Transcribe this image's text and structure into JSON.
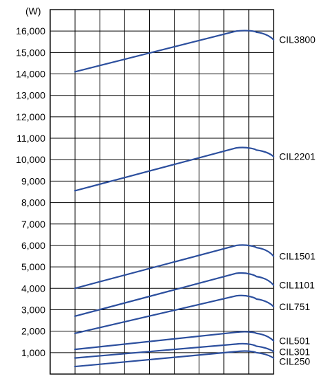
{
  "chart_data": {
    "type": "line",
    "unit_label": "(W)",
    "ylim": [
      0,
      17000
    ],
    "y_ticks": [
      1000,
      2000,
      3000,
      4000,
      5000,
      6000,
      7000,
      8000,
      9000,
      10000,
      11000,
      12000,
      13000,
      14000,
      15000,
      16000
    ],
    "y_tick_labels": [
      "1,000",
      "2,000",
      "3,000",
      "4,000",
      "5,000",
      "6,000",
      "7,000",
      "8,000",
      "9,000",
      "10,000",
      "11,000",
      "12,000",
      "13,000",
      "14,000",
      "15,000",
      "16,000"
    ],
    "x_columns": 9,
    "grid": true,
    "series": [
      {
        "name": "CIL3800",
        "points": [
          [
            1,
            14100
          ],
          [
            7.5,
            16000
          ],
          [
            8.3,
            15950
          ],
          [
            9,
            15600
          ]
        ],
        "color": "#2c4f9e"
      },
      {
        "name": "CIL2201",
        "points": [
          [
            1,
            8550
          ],
          [
            7.5,
            10550
          ],
          [
            8.3,
            10450
          ],
          [
            9,
            10150
          ]
        ],
        "color": "#2c4f9e"
      },
      {
        "name": "CIL1501",
        "points": [
          [
            1,
            4000
          ],
          [
            7.5,
            6000
          ],
          [
            8.3,
            5900
          ],
          [
            9,
            5500
          ]
        ],
        "color": "#2c4f9e"
      },
      {
        "name": "CIL1101",
        "points": [
          [
            1,
            2700
          ],
          [
            7.5,
            4700
          ],
          [
            8.3,
            4550
          ],
          [
            9,
            4150
          ]
        ],
        "color": "#2c4f9e"
      },
      {
        "name": "CIL751",
        "points": [
          [
            1,
            1900
          ],
          [
            7.5,
            3650
          ],
          [
            8.3,
            3500
          ],
          [
            9,
            3150
          ]
        ],
        "color": "#2c4f9e"
      },
      {
        "name": "CIL501",
        "points": [
          [
            1,
            1150
          ],
          [
            7.5,
            1950
          ],
          [
            8.3,
            1900
          ],
          [
            9,
            1550
          ]
        ],
        "color": "#2c4f9e"
      },
      {
        "name": "CIL301",
        "points": [
          [
            1,
            750
          ],
          [
            7.5,
            1400
          ],
          [
            8.3,
            1300
          ],
          [
            9,
            1050
          ]
        ],
        "color": "#2c4f9e"
      },
      {
        "name": "CIL250",
        "points": [
          [
            1,
            350
          ],
          [
            7.5,
            1050
          ],
          [
            8.3,
            1000
          ],
          [
            9,
            750
          ]
        ],
        "color": "#2c4f9e"
      }
    ]
  }
}
